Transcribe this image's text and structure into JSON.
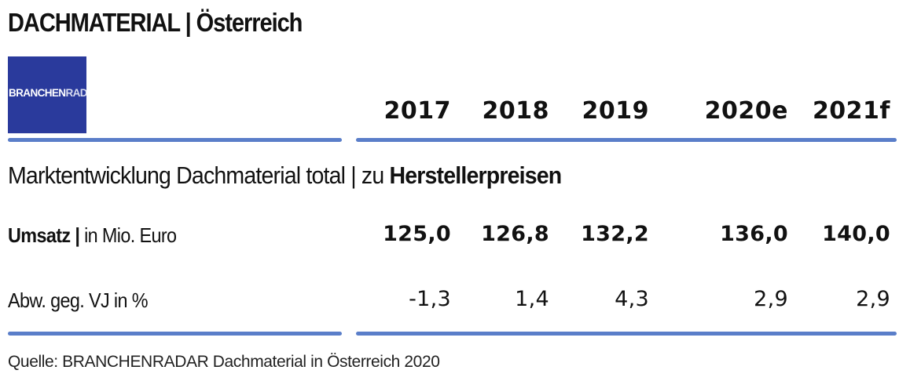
{
  "title": "DACHMATERIAL | Österreich",
  "logo": {
    "part1": "BRANCHEN",
    "part2": "RADAR"
  },
  "colors": {
    "logo_bg": "#2a3a9c",
    "rule": "#5a7ec9"
  },
  "subtitle": {
    "normal": "Marktentwicklung Dachmaterial total | zu ",
    "bold": "Herstellerpreisen"
  },
  "rows": [
    {
      "label_bold": "Umsatz |",
      "label_normal": " in Mio. Euro"
    },
    {
      "label_bold": "",
      "label_normal": "Abw. geg. VJ in %"
    }
  ],
  "chart_data": {
    "type": "table",
    "title": "DACHMATERIAL | Österreich",
    "subtitle": "Marktentwicklung Dachmaterial total | zu Herstellerpreisen",
    "columns": [
      "2017",
      "2018",
      "2019",
      "2020e",
      "2021f"
    ],
    "series": [
      {
        "name": "Umsatz | in Mio. Euro",
        "values": [
          "125,0",
          "126,8",
          "132,2",
          "136,0",
          "140,0"
        ]
      },
      {
        "name": "Abw. geg. VJ in %",
        "values": [
          "-1,3",
          "1,4",
          "4,3",
          "2,9",
          "2,9"
        ]
      }
    ]
  },
  "source": "Quelle: BRANCHENRADAR Dachmaterial in Österreich 2020"
}
